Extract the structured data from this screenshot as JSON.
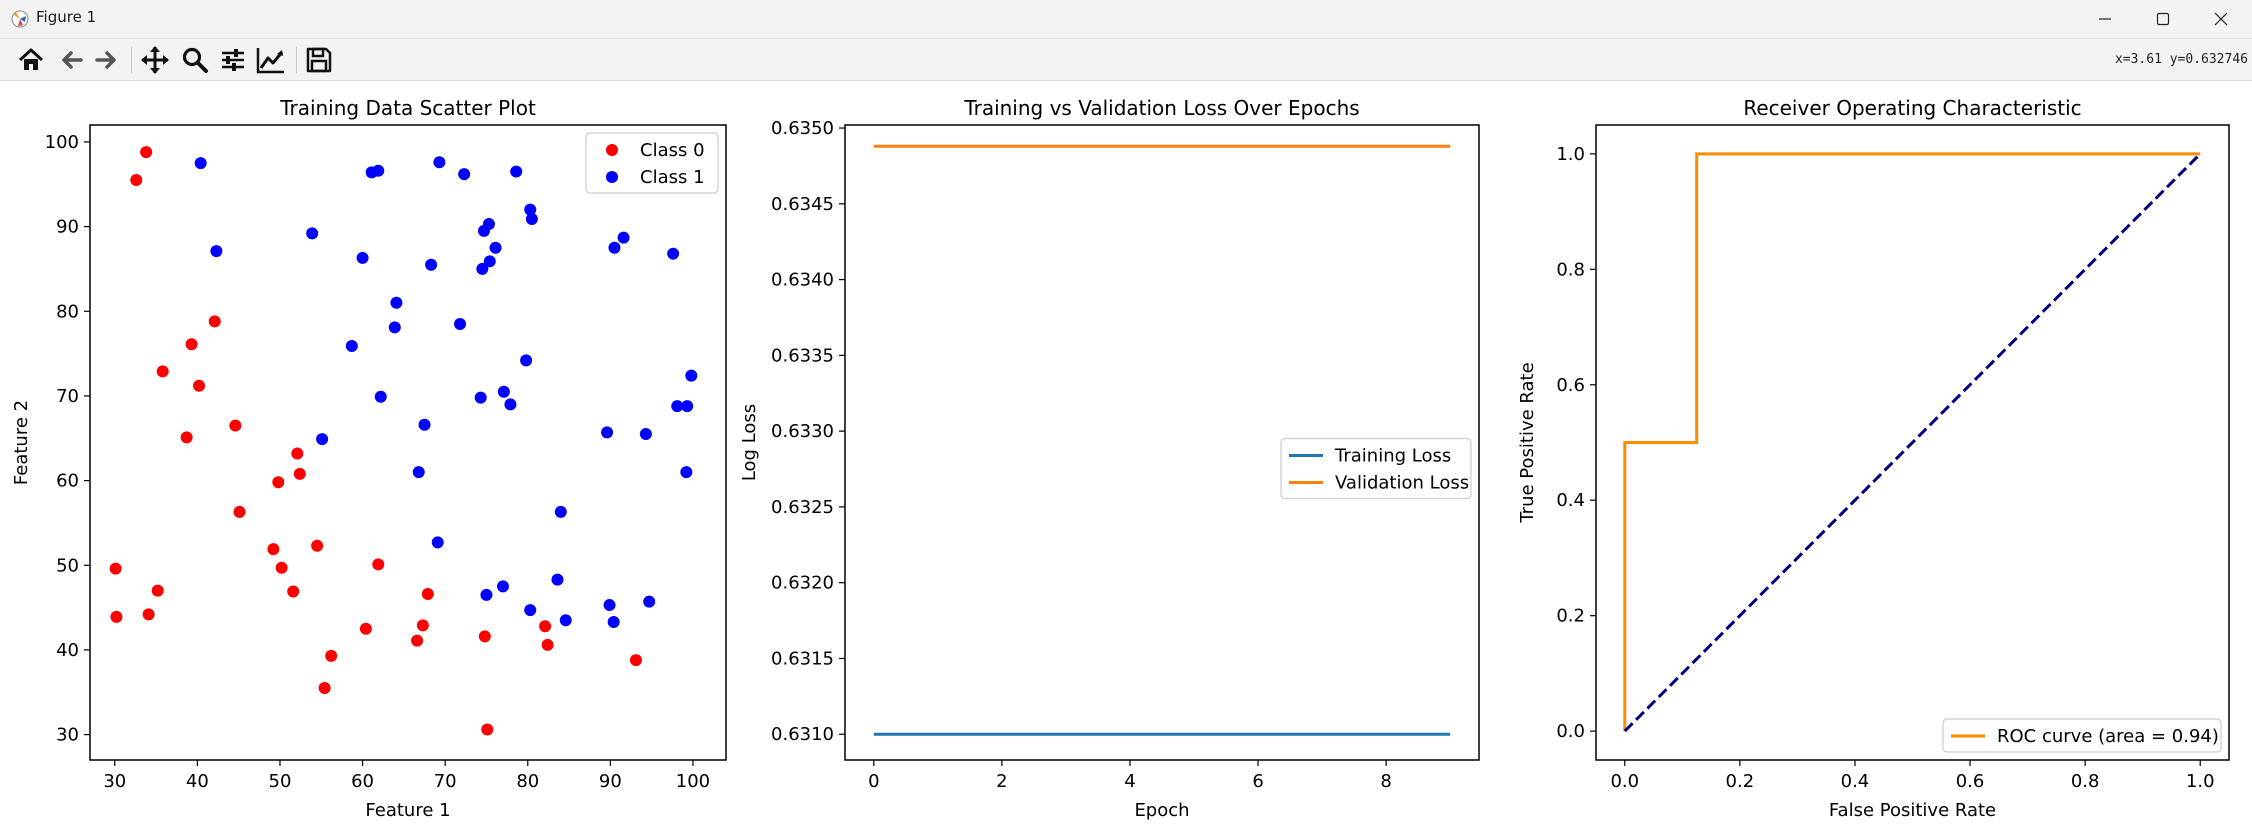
{
  "window": {
    "title": "Figure 1"
  },
  "toolbar": {
    "buttons": [
      "home-icon",
      "back-icon",
      "forward-icon",
      "pan-icon",
      "zoom-icon",
      "configure-subplots-icon",
      "edit-axis-icon",
      "save-icon"
    ],
    "coords": "x=3.61 y=0.632746"
  },
  "chart_data": [
    {
      "type": "scatter",
      "title": "Training Data Scatter Plot",
      "xlabel": "Feature 1",
      "ylabel": "Feature 2",
      "xlim": [
        27,
        104
      ],
      "ylim": [
        27,
        102
      ],
      "xticks": [
        30,
        40,
        50,
        60,
        70,
        80,
        90,
        100
      ],
      "yticks": [
        30,
        40,
        50,
        60,
        70,
        80,
        90,
        100
      ],
      "legend": "upper-right",
      "series": [
        {
          "name": "Class 0",
          "color": "#ff0000",
          "x": [
            33.8,
            32.6,
            42.1,
            39.3,
            40.2,
            35.8,
            38.7,
            44.6,
            52.1,
            52.4,
            49.8,
            45.1,
            49.2,
            54.5,
            50.2,
            61.9,
            30.1,
            30.2,
            35.2,
            34.1,
            51.6,
            67.9,
            60.4,
            67.3,
            66.6,
            74.8,
            82.1,
            82.4,
            56.2,
            55.4,
            93.1,
            75.1
          ],
          "y": [
            98.8,
            95.5,
            78.8,
            76.1,
            71.2,
            72.9,
            65.1,
            66.5,
            63.2,
            60.8,
            59.8,
            56.3,
            51.9,
            52.3,
            49.7,
            50.1,
            49.6,
            43.9,
            47.0,
            44.2,
            46.9,
            46.6,
            42.5,
            42.9,
            41.1,
            41.6,
            42.8,
            40.6,
            39.3,
            35.5,
            38.8,
            30.6
          ]
        },
        {
          "name": "Class 1",
          "color": "#0000ff",
          "x": [
            40.4,
            61.1,
            61.9,
            69.3,
            72.3,
            78.6,
            42.3,
            53.9,
            60.0,
            68.3,
            75.3,
            80.3,
            80.5,
            74.7,
            76.1,
            75.4,
            74.5,
            91.6,
            90.5,
            97.6,
            64.1,
            63.9,
            71.8,
            58.7,
            79.8,
            62.2,
            74.3,
            77.1,
            99.8,
            77.9,
            98.1,
            99.3,
            67.5,
            89.6,
            94.3,
            55.1,
            66.8,
            99.2,
            84.0,
            69.1,
            83.6,
            94.7,
            89.9,
            75.0,
            77.0,
            80.3,
            84.6,
            90.4
          ],
          "y": [
            97.5,
            96.4,
            96.6,
            97.6,
            96.2,
            96.5,
            87.1,
            89.2,
            86.3,
            85.5,
            90.3,
            92.0,
            90.9,
            89.5,
            87.5,
            85.9,
            85.0,
            88.7,
            87.5,
            86.8,
            81.0,
            78.1,
            78.5,
            75.9,
            74.2,
            69.9,
            69.8,
            70.5,
            72.4,
            69.0,
            68.8,
            68.8,
            66.6,
            65.7,
            65.5,
            64.9,
            61.0,
            61.0,
            56.3,
            52.7,
            48.3,
            45.7,
            45.3,
            46.5,
            47.5,
            44.7,
            43.5,
            43.3
          ]
        }
      ]
    },
    {
      "type": "line",
      "title": "Training vs Validation Loss Over Epochs",
      "xlabel": "Epoch",
      "ylabel": "Log Loss",
      "xlim": [
        -0.45,
        9.45
      ],
      "ylim": [
        0.63083,
        0.63502
      ],
      "xticks": [
        0,
        2,
        4,
        6,
        8
      ],
      "yticks": [
        0.631,
        0.6315,
        0.632,
        0.6325,
        0.633,
        0.6335,
        0.634,
        0.6345,
        0.635
      ],
      "legend": "center-right",
      "x": [
        0,
        1,
        2,
        3,
        4,
        5,
        6,
        7,
        8,
        9
      ],
      "series": [
        {
          "name": "Training Loss",
          "color": "#1f77b4",
          "values": [
            0.631,
            0.631,
            0.631,
            0.631,
            0.631,
            0.631,
            0.631,
            0.631,
            0.631,
            0.631
          ]
        },
        {
          "name": "Validation Loss",
          "color": "#ff7f0e",
          "values": [
            0.63488,
            0.63488,
            0.63488,
            0.63488,
            0.63488,
            0.63488,
            0.63488,
            0.63488,
            0.63488,
            0.63488
          ]
        }
      ]
    },
    {
      "type": "line",
      "title": "Receiver Operating Characteristic",
      "xlabel": "False Positive Rate",
      "ylabel": "True Positive Rate",
      "xlim": [
        -0.05,
        1.05
      ],
      "ylim": [
        -0.05,
        1.05
      ],
      "xticks": [
        0.0,
        0.2,
        0.4,
        0.6,
        0.8,
        1.0
      ],
      "yticks": [
        0.0,
        0.2,
        0.4,
        0.6,
        0.8,
        1.0
      ],
      "legend": "lower-right",
      "series": [
        {
          "name": "ROC curve (area = 0.94)",
          "color": "#ff8c00",
          "x": [
            0,
            0,
            0.125,
            0.125,
            1.0
          ],
          "y": [
            0,
            0.5,
            0.5,
            1.0,
            1.0
          ]
        },
        {
          "name": "",
          "color": "#000080",
          "dashed": true,
          "x": [
            0,
            1
          ],
          "y": [
            0,
            1
          ]
        }
      ]
    }
  ]
}
